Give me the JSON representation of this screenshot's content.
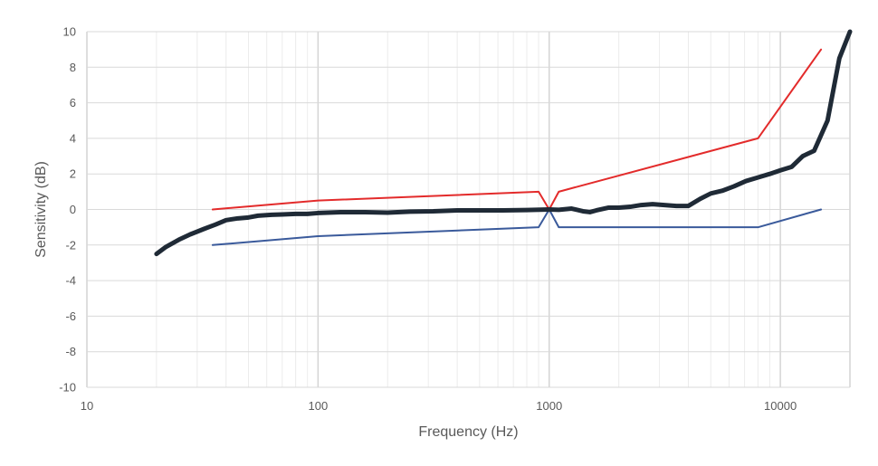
{
  "chart_data": {
    "type": "line",
    "xscale": "log",
    "xlim": [
      10,
      20000
    ],
    "ylim": [
      -10,
      10
    ],
    "xlabel": "Frequency (Hz)",
    "ylabel": "Sensitivity (dB)",
    "x_ticks": [
      "10",
      "100",
      "1000",
      "10000"
    ],
    "y_ticks": [
      "10",
      "8",
      "6",
      "4",
      "2",
      "0",
      "-2",
      "-4",
      "-6",
      "-8",
      "-10"
    ],
    "grid": true,
    "legend": "none",
    "series": [
      {
        "color": "#e32b2b",
        "points": [
          [
            35,
            0
          ],
          [
            100,
            0.5
          ],
          [
            900,
            1
          ],
          [
            1000,
            0
          ],
          [
            1100,
            1
          ],
          [
            8000,
            4
          ],
          [
            15000,
            9
          ]
        ]
      },
      {
        "color": "#3a5a9b",
        "points": [
          [
            35,
            -2
          ],
          [
            100,
            -1.5
          ],
          [
            900,
            -1
          ],
          [
            1000,
            0
          ],
          [
            1100,
            -1
          ],
          [
            8000,
            -1
          ],
          [
            15000,
            0
          ]
        ]
      },
      {
        "color": "#1f2a36",
        "points": [
          [
            20,
            -2.5
          ],
          [
            22,
            -2.1
          ],
          [
            25,
            -1.7
          ],
          [
            28,
            -1.4
          ],
          [
            32,
            -1.1
          ],
          [
            36,
            -0.85
          ],
          [
            40,
            -0.6
          ],
          [
            45,
            -0.5
          ],
          [
            50,
            -0.45
          ],
          [
            55,
            -0.35
          ],
          [
            63,
            -0.3
          ],
          [
            70,
            -0.28
          ],
          [
            80,
            -0.25
          ],
          [
            90,
            -0.25
          ],
          [
            100,
            -0.2
          ],
          [
            125,
            -0.15
          ],
          [
            160,
            -0.15
          ],
          [
            200,
            -0.18
          ],
          [
            250,
            -0.12
          ],
          [
            315,
            -0.1
          ],
          [
            400,
            -0.05
          ],
          [
            500,
            -0.05
          ],
          [
            630,
            -0.05
          ],
          [
            800,
            -0.03
          ],
          [
            1000,
            0
          ],
          [
            1100,
            -0.02
          ],
          [
            1250,
            0.05
          ],
          [
            1400,
            -0.1
          ],
          [
            1500,
            -0.15
          ],
          [
            1600,
            -0.05
          ],
          [
            1800,
            0.1
          ],
          [
            2000,
            0.1
          ],
          [
            2240,
            0.15
          ],
          [
            2500,
            0.25
          ],
          [
            2800,
            0.3
          ],
          [
            3150,
            0.25
          ],
          [
            3550,
            0.2
          ],
          [
            4000,
            0.2
          ],
          [
            4500,
            0.6
          ],
          [
            5000,
            0.9
          ],
          [
            5600,
            1.05
          ],
          [
            6300,
            1.3
          ],
          [
            7100,
            1.6
          ],
          [
            8000,
            1.8
          ],
          [
            9000,
            2.0
          ],
          [
            10000,
            2.2
          ],
          [
            11200,
            2.4
          ],
          [
            12500,
            3.0
          ],
          [
            14000,
            3.3
          ],
          [
            16000,
            5.0
          ],
          [
            18000,
            8.5
          ],
          [
            20000,
            10
          ]
        ]
      }
    ]
  }
}
